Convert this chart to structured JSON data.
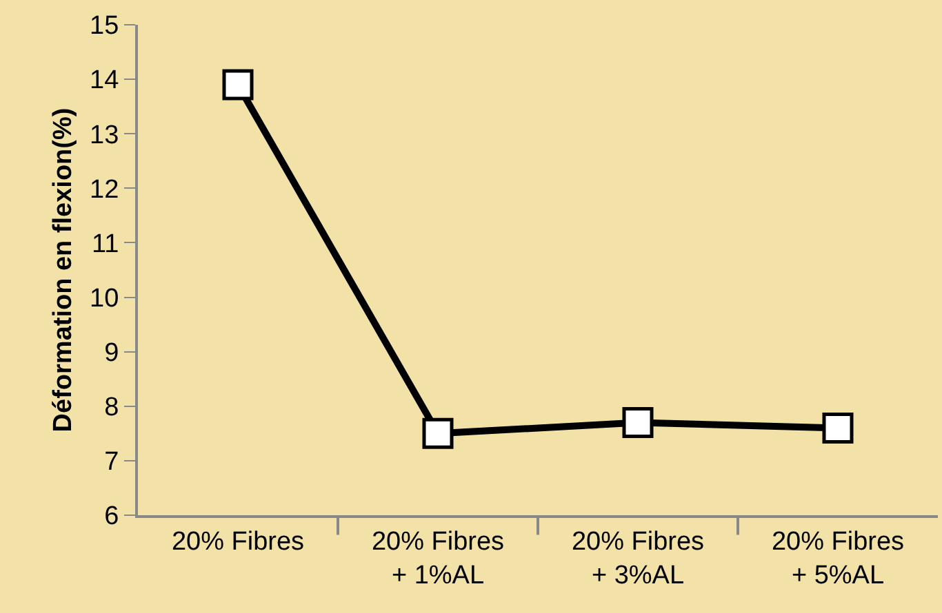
{
  "chart_data": {
    "type": "line",
    "ylabel": "Déformation en flexion(%)",
    "categories": [
      "20% Fibres",
      "20% Fibres\n+ 1%AL",
      "20% Fibres\n+ 3%AL",
      "20% Fibres\n+ 5%AL"
    ],
    "series": [
      {
        "color": "#000000",
        "values": [
          13.9,
          7.5,
          7.7,
          7.6
        ]
      }
    ],
    "ylim": [
      6,
      15
    ],
    "yticks": [
      6,
      7,
      8,
      9,
      10,
      11,
      12,
      13,
      14,
      15
    ],
    "marker": "square",
    "line_style": "solid"
  }
}
